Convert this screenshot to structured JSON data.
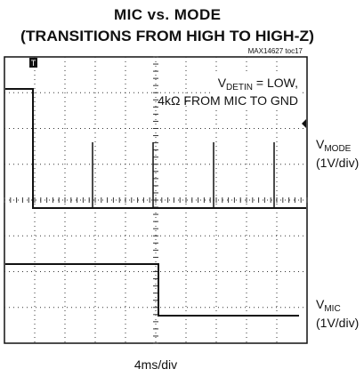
{
  "title": "MIC vs. MODE",
  "subtitle": "(TRANSITIONS FROM HIGH TO HIGH-Z)",
  "figure_id": "MAX14627 toc17",
  "annotation": {
    "line1": {
      "main": "V",
      "sub": "DETIN",
      "rest": " = LOW,"
    },
    "line2": "4kΩ FROM MIC TO GND"
  },
  "channels": [
    {
      "main": "V",
      "sub": "MODE",
      "scale": "(1V/div)"
    },
    {
      "main": "V",
      "sub": "MIC",
      "scale": "(1V/div)"
    }
  ],
  "time_scale": "4ms/div"
}
